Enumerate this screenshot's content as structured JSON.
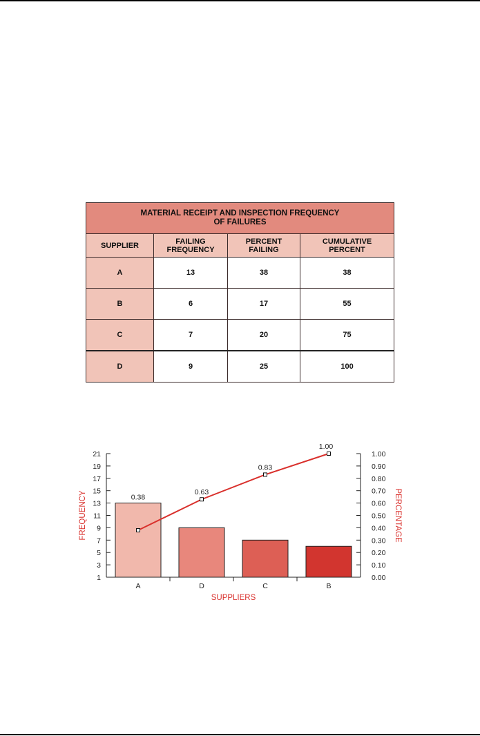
{
  "table": {
    "title_line1": "MATERIAL RECEIPT AND INSPECTION FREQUENCY",
    "title_line2": "OF FAILURES",
    "headers": {
      "supplier": "SUPPLIER",
      "failing_1": "FAILING",
      "failing_2": "FREQUENCY",
      "percent_1": "PERCENT",
      "percent_2": "FAILING",
      "cumulative_1": "CUMULATIVE",
      "cumulative_2": "PERCENT"
    },
    "rows": [
      {
        "supplier": "A",
        "frequency": "13",
        "percent": "38",
        "cumulative": "38"
      },
      {
        "supplier": "B",
        "frequency": "6",
        "percent": "17",
        "cumulative": "55"
      },
      {
        "supplier": "C",
        "frequency": "7",
        "percent": "20",
        "cumulative": "75"
      },
      {
        "supplier": "D",
        "frequency": "9",
        "percent": "25",
        "cumulative": "100"
      }
    ],
    "colors": {
      "title_bg": "#e28a7e",
      "header_bg": "#f1c4b8"
    }
  },
  "chart_data": {
    "type": "bar",
    "categories": [
      "A",
      "D",
      "C",
      "B"
    ],
    "values": [
      13,
      9,
      7,
      6
    ],
    "bar_colors": [
      "#f1b8ac",
      "#e8877c",
      "#dd5f55",
      "#d2352f"
    ],
    "line": {
      "values": [
        0.38,
        0.63,
        0.83,
        1.0
      ],
      "labels": [
        "0.38",
        "0.63",
        "0.83",
        "1.00"
      ],
      "color": "#d9302c"
    },
    "left_axis": {
      "label": "FREQUENCY",
      "ticks": [
        "1",
        "3",
        "5",
        "7",
        "9",
        "11",
        "13",
        "15",
        "17",
        "19",
        "21"
      ],
      "ylim": [
        1,
        21
      ]
    },
    "right_axis": {
      "label": "PERCENTAGE",
      "ticks": [
        "0.00",
        "0.10",
        "0.20",
        "0.30",
        "0.40",
        "0.50",
        "0.60",
        "0.70",
        "0.80",
        "0.90",
        "1.00"
      ],
      "ylim": [
        0,
        1
      ]
    },
    "xlabel": "SUPPLIERS"
  }
}
